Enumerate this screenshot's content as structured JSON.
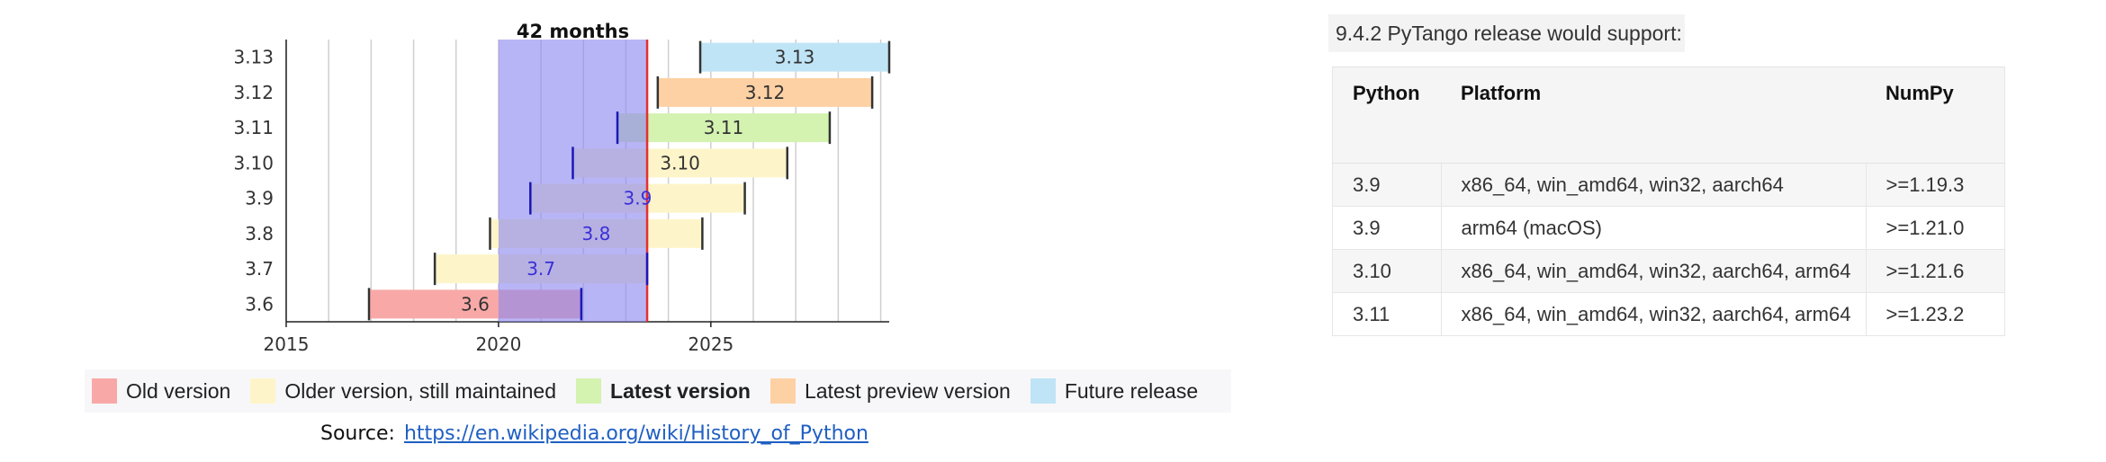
{
  "chart_data": {
    "type": "bar",
    "chart_kind": "timeline-gantt",
    "annotation": "42 months",
    "highlight_window": {
      "start": 2020.0,
      "end": 2023.5
    },
    "xlim": [
      2015,
      2029.2
    ],
    "x_ticks": [
      "2015",
      "2020",
      "2025"
    ],
    "categories": [
      "3.13",
      "3.12",
      "3.11",
      "3.10",
      "3.9",
      "3.8",
      "3.7",
      "3.6"
    ],
    "versions": [
      {
        "label": "3.13",
        "start": 2024.75,
        "end": 2029.2,
        "status": "future"
      },
      {
        "label": "3.12",
        "start": 2023.75,
        "end": 2028.8,
        "status": "preview"
      },
      {
        "label": "3.11",
        "start": 2022.8,
        "end": 2027.8,
        "status": "latest"
      },
      {
        "label": "3.10",
        "start": 2021.75,
        "end": 2026.8,
        "status": "older"
      },
      {
        "label": "3.9",
        "start": 2020.75,
        "end": 2025.8,
        "status": "older"
      },
      {
        "label": "3.8",
        "start": 2019.8,
        "end": 2024.8,
        "status": "older"
      },
      {
        "label": "3.7",
        "start": 2018.5,
        "end": 2023.5,
        "status": "older"
      },
      {
        "label": "3.6",
        "start": 2016.95,
        "end": 2021.95,
        "status": "old"
      }
    ],
    "colors": {
      "old": "#f8a9a7",
      "older": "#fdf5c9",
      "latest": "#d4f2b0",
      "preview": "#fdd1a4",
      "future": "#bfe4f5",
      "highlight": "#8d87f0",
      "highlight_line": "#e53030",
      "highlight_label_text": "#3a2fd8"
    }
  },
  "legend": {
    "items": [
      {
        "label": "Old version",
        "color": "#f8a9a7",
        "bold": false
      },
      {
        "label": "Older version, still maintained",
        "color": "#fdf5c9",
        "bold": false
      },
      {
        "label": "Latest version",
        "color": "#d4f2b0",
        "bold": true
      },
      {
        "label": "Latest preview version",
        "color": "#fdd1a4",
        "bold": false
      },
      {
        "label": "Future release",
        "color": "#bfe4f5",
        "bold": false
      }
    ]
  },
  "source": {
    "label": "Source:",
    "link": "https://en.wikipedia.org/wiki/History_of_Python"
  },
  "release_note": "9.4.2 PyTango release would support:",
  "support_table": {
    "headers": [
      "Python",
      "Platform",
      "NumPy"
    ],
    "rows": [
      [
        "3.9",
        "x86_64, win_amd64, win32, aarch64",
        ">=1.19.3"
      ],
      [
        "3.9",
        "arm64 (macOS)",
        ">=1.21.0"
      ],
      [
        "3.10",
        "x86_64, win_amd64, win32, aarch64, arm64",
        ">=1.21.6"
      ],
      [
        "3.11",
        "x86_64, win_amd64, win32, aarch64, arm64",
        ">=1.23.2"
      ]
    ]
  }
}
